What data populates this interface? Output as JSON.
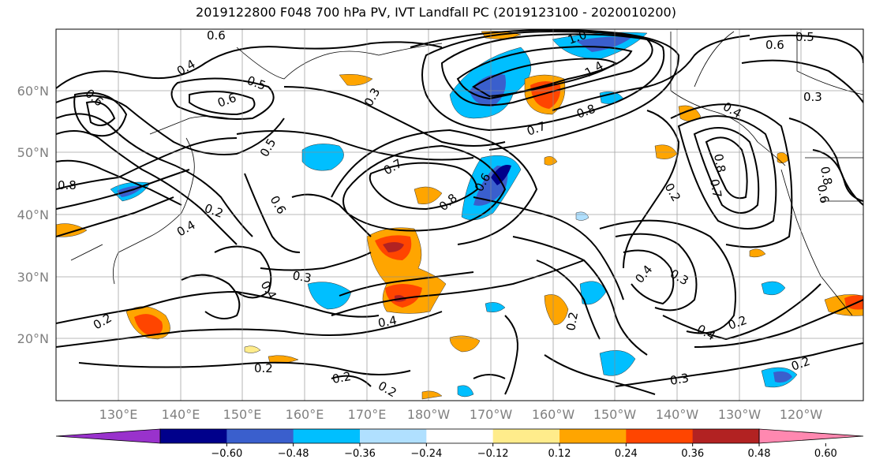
{
  "title": "2019122800 F048 700 hPa PV, IVT Landfall PC (2019123100 - 2020010200)",
  "map": {
    "lat_labels": [
      "60°N",
      "50°N",
      "40°N",
      "30°N",
      "20°N"
    ],
    "lon_labels": [
      "130°E",
      "140°E",
      "150°E",
      "160°E",
      "170°E",
      "180°W",
      "170°W",
      "160°W",
      "150°W",
      "140°W",
      "130°W",
      "120°W"
    ],
    "contour_labels": [
      "0.6",
      "0.6",
      "0.5",
      "0.4",
      "0.5",
      "0.6",
      "0.3",
      "1.0",
      "1.4",
      "0.8",
      "0.7",
      "0.4",
      "0.3",
      "0.6",
      "0.5",
      "0.8",
      "0.4",
      "0.7",
      "0.6",
      "0.8",
      "0.2",
      "0.3",
      "0.4",
      "0.3",
      "0.4",
      "0.2",
      "0.4",
      "0.2",
      "0.2",
      "0.2",
      "0.3",
      "0.2",
      "0.4",
      "0.2",
      "0.6",
      "0.8",
      "0.7",
      "0.8",
      "0.6"
    ]
  },
  "colorbar": {
    "ticks": [
      "−0.60",
      "−0.48",
      "−0.36",
      "−0.24",
      "−0.12",
      "0.12",
      "0.24",
      "0.36",
      "0.48",
      "0.60"
    ],
    "colors": [
      "#9932cc",
      "#00008b",
      "#3a5fcd",
      "#00bfff",
      "#b0e0ff",
      "#ffffff",
      "#ffec8b",
      "#ffa500",
      "#ff4500",
      "#b22222",
      "#ff88b0"
    ]
  }
}
